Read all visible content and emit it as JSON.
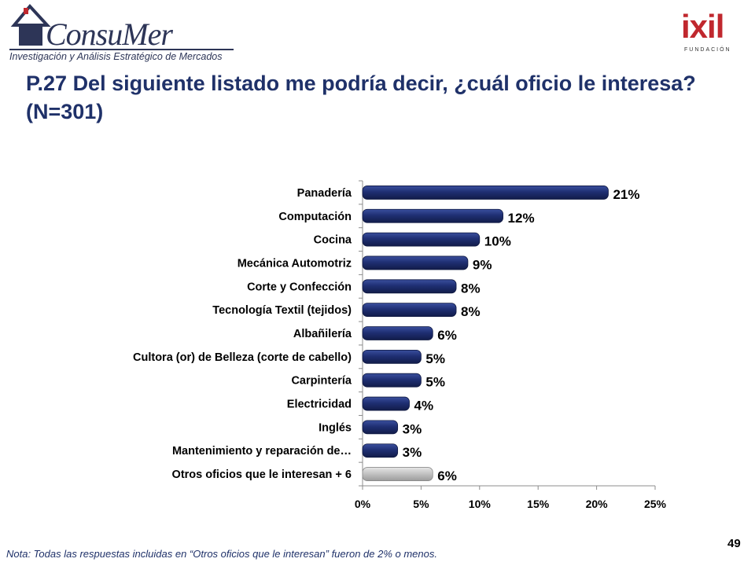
{
  "header": {
    "logo_left_text": "ConsuMer",
    "logo_left_tagline": "Investigación y Análisis Estratégico de Mercados",
    "logo_right_text": "ixil",
    "logo_right_sub": "FUNDACIÓN"
  },
  "title": "P.27 Del siguiente listado me podría decir, ¿cuál oficio le interesa? (N=301)",
  "chart_data": {
    "type": "bar",
    "orientation": "horizontal",
    "categories": [
      "Panadería",
      "Computación",
      "Cocina",
      "Mecánica Automotriz",
      "Corte y Confección",
      "Tecnología Textil (tejidos)",
      "Albañilería",
      "Cultora (or) de Belleza (corte de cabello)",
      "Carpintería",
      "Electricidad",
      "Inglés",
      "Mantenimiento y reparación de…",
      "Otros oficios que le interesan + 6"
    ],
    "values": [
      21,
      12,
      10,
      9,
      8,
      8,
      6,
      5,
      5,
      4,
      3,
      3,
      6
    ],
    "data_labels": [
      "21%",
      "12%",
      "10%",
      "9%",
      "8%",
      "8%",
      "6%",
      "5%",
      "5%",
      "4%",
      "3%",
      "3%",
      "6%"
    ],
    "bar_colors": [
      "#1f2f73",
      "#1f2f73",
      "#1f2f73",
      "#1f2f73",
      "#1f2f73",
      "#1f2f73",
      "#1f2f73",
      "#1f2f73",
      "#1f2f73",
      "#1f2f73",
      "#1f2f73",
      "#1f2f73",
      "#c0c0c0"
    ],
    "xlim": [
      0,
      25
    ],
    "xticks": [
      0,
      5,
      10,
      15,
      20,
      25
    ],
    "xtick_labels": [
      "0%",
      "5%",
      "10%",
      "15%",
      "20%",
      "25%"
    ],
    "grid": false
  },
  "footnote": "Nota: Todas las respuestas incluidas en “Otros oficios que le interesan” fueron de 2% o menos.",
  "page_number": "49"
}
